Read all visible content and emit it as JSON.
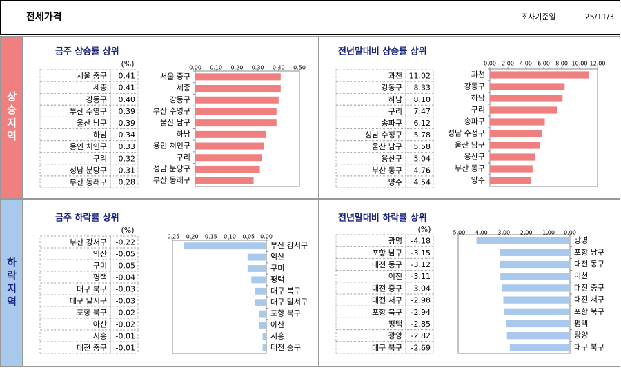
{
  "header": {
    "title": "전세가격",
    "date_label": "조사기준일",
    "date": "25/11/3"
  },
  "sections": [
    "상승지역",
    "하락지역"
  ],
  "chart_data": [
    {
      "type": "bar",
      "orientation": "horizontal",
      "title": "금주 상승률 상위",
      "unit": "(%)",
      "color": "#f08080",
      "categories": [
        "서울 중구",
        "세종",
        "강동구",
        "부산 수영구",
        "울산 남구",
        "하남",
        "용인 처인구",
        "구리",
        "성남 분당구",
        "부산 동래구"
      ],
      "values": [
        0.41,
        0.41,
        0.4,
        0.39,
        0.39,
        0.34,
        0.33,
        0.32,
        0.31,
        0.28
      ],
      "value_labels": [
        "0.41",
        "0.41",
        "0.40",
        "0.39",
        "0.39",
        "0.34",
        "0.33",
        "0.32",
        "0.31",
        "0.28"
      ],
      "xlim": [
        0,
        0.5
      ],
      "xticks": [
        {
          "value": 0,
          "label": "0.00"
        },
        {
          "value": 0.1,
          "label": "0.10"
        },
        {
          "value": 0.2,
          "label": "0.20"
        },
        {
          "value": 0.3,
          "label": "0.30"
        },
        {
          "value": 0.4,
          "label": "0.40"
        },
        {
          "value": 0.5,
          "label": "0.50"
        }
      ]
    },
    {
      "type": "bar",
      "orientation": "horizontal",
      "title": "전년말대비 상승률 상위",
      "color": "#f08080",
      "categories": [
        "과천",
        "강동구",
        "하남",
        "구리",
        "송파구",
        "성남 수정구",
        "울산 남구",
        "용산구",
        "부산 동구",
        "양주"
      ],
      "values": [
        11.02,
        8.33,
        8.1,
        7.47,
        6.12,
        5.78,
        5.58,
        5.04,
        4.76,
        4.54
      ],
      "value_labels": [
        "11.02",
        "8.33",
        "8.10",
        "7.47",
        "6.12",
        "5.78",
        "5.58",
        "5.04",
        "4.76",
        "4.54"
      ],
      "xlim": [
        0,
        12
      ],
      "xticks": [
        {
          "value": 0,
          "label": "0.00"
        },
        {
          "value": 2,
          "label": "2.00"
        },
        {
          "value": 4,
          "label": "4.00"
        },
        {
          "value": 6,
          "label": "6.00"
        },
        {
          "value": 8,
          "label": "8.00"
        },
        {
          "value": 10,
          "label": "10.00"
        },
        {
          "value": 12,
          "label": "12.00"
        }
      ]
    },
    {
      "type": "bar",
      "orientation": "horizontal",
      "title": "금주 하락률 상위",
      "unit": "(%)",
      "color": "#a9c9ec",
      "categories": [
        "부산 강서구",
        "익산",
        "구미",
        "평택",
        "대구 북구",
        "대구 달서구",
        "포항 북구",
        "아산",
        "시흥",
        "대전 중구"
      ],
      "values": [
        -0.22,
        -0.05,
        -0.05,
        -0.04,
        -0.03,
        -0.03,
        -0.02,
        -0.02,
        -0.01,
        -0.01
      ],
      "value_labels": [
        "-0.22",
        "-0.05",
        "-0.05",
        "-0.04",
        "-0.03",
        "-0.03",
        "-0.02",
        "-0.02",
        "-0.01",
        "-0.01"
      ],
      "xlim": [
        -0.25,
        0
      ],
      "xticks": [
        -0.25,
        {
          "value": -0.2,
          "label": "-0.20"
        },
        -0.15,
        {
          "value": -0.1,
          "label": "-0.10"
        },
        -0.05,
        {
          "value": 0,
          "label": "0.00"
        }
      ]
    },
    {
      "type": "bar",
      "orientation": "horizontal",
      "title": "전년말대비 하락률 상위",
      "unit": "(%)",
      "color": "#a9c9ec",
      "categories": [
        "광명",
        "포항 남구",
        "대전 동구",
        "이천",
        "대전 중구",
        "대전 서구",
        "포항 북구",
        "평택",
        "광양",
        "대구 북구"
      ],
      "values": [
        -4.18,
        -3.15,
        -3.12,
        -3.11,
        -3.04,
        -2.98,
        -2.94,
        -2.85,
        -2.82,
        -2.69
      ],
      "value_labels": [
        "-4.18",
        "-3.15",
        "-3.12",
        "-3.11",
        "-3.04",
        "-2.98",
        "-2.94",
        "-2.85",
        "-2.82",
        "-2.69"
      ],
      "xlim": [
        -5,
        0
      ],
      "xticks": [
        {
          "value": -5,
          "label": "-5.00"
        },
        {
          "value": -4,
          "label": "-4.00"
        },
        {
          "value": -3,
          "label": "-3.00"
        },
        {
          "value": -2,
          "label": "-2.00"
        },
        {
          "value": -1,
          "label": "-1.00"
        },
        {
          "value": 0,
          "label": "0.00"
        }
      ]
    }
  ]
}
